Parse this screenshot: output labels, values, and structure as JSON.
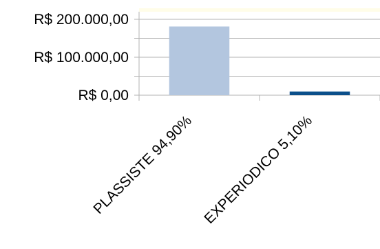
{
  "chart_data": {
    "type": "bar",
    "categories": [
      "PLASSISTE  94,90%",
      "EXPERIODICO  5,10%"
    ],
    "series": [
      {
        "values": [
          181000,
          9700
        ],
        "colors": [
          "#b3c6df",
          "#0b4f8a"
        ]
      }
    ],
    "ylim": [
      0,
      220000
    ],
    "yticks": [
      0,
      100000,
      200000
    ],
    "ytick_labels": [
      "R$ 0,00",
      "R$ 100.000,00",
      "R$ 200.000,00"
    ],
    "grid": true,
    "title": "",
    "xlabel": "",
    "ylabel": ""
  },
  "colors": {
    "axis": "#b3b3b3",
    "grid": "#b3b3b3",
    "plot_top_band": "#fffde8"
  }
}
